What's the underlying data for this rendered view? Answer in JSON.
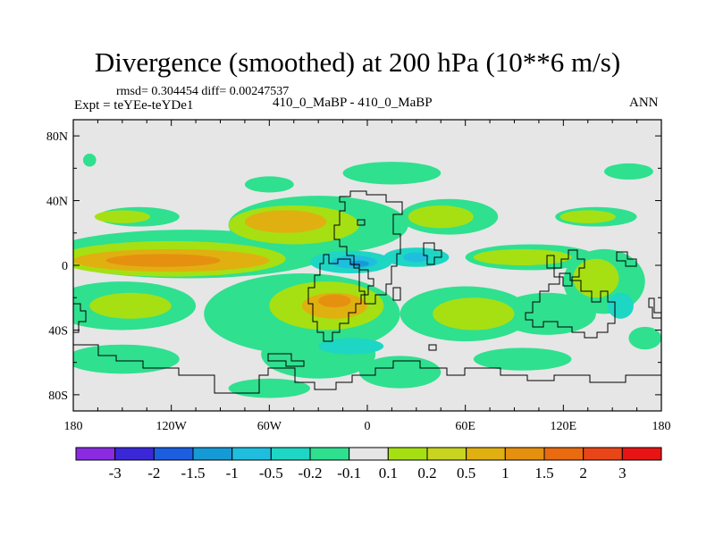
{
  "chart_data": {
    "type": "heatmap",
    "title": "Divergence (smoothed) at 200 hPa (10**6 m/s)",
    "stats_text": "rmsd= 0.304454 diff= 0.00247537",
    "experiment_text": "Expt = teYEe-teYDe1",
    "case_text": "410_0_MaBP - 410_0_MaBP",
    "season": "ANN",
    "xlim": [
      -180,
      180
    ],
    "ylim": [
      -90,
      90
    ],
    "x_ticks": [
      {
        "value": -180,
        "label": "180"
      },
      {
        "value": -120,
        "label": "120W"
      },
      {
        "value": -60,
        "label": "60W"
      },
      {
        "value": 0,
        "label": "0"
      },
      {
        "value": 60,
        "label": "60E"
      },
      {
        "value": 120,
        "label": "120E"
      },
      {
        "value": 180,
        "label": "180"
      }
    ],
    "y_ticks": [
      {
        "value": 80,
        "label": "80N"
      },
      {
        "value": 40,
        "label": "40N"
      },
      {
        "value": 0,
        "label": "0"
      },
      {
        "value": -40,
        "label": "40S"
      },
      {
        "value": -80,
        "label": "80S"
      }
    ],
    "colorbar": {
      "colors": [
        "#8a2be2",
        "#3a28d8",
        "#1c5ee0",
        "#169ad6",
        "#20bede",
        "#1ed6c4",
        "#2fe08f",
        "#e6e6e6",
        "#a6e012",
        "#c8d420",
        "#e0b010",
        "#e69010",
        "#ea6a10",
        "#e84618",
        "#e81414"
      ],
      "labels": [
        "-3",
        "-2",
        "-1.5",
        "-1",
        "-0.5",
        "-0.2",
        "-0.1",
        "0.1",
        "0.2",
        "0.5",
        "1",
        "1.5",
        "2",
        "3"
      ]
    },
    "regions": [
      {
        "lon": -170,
        "lat": 65,
        "w": 8,
        "h": 8,
        "level": "-0.1"
      },
      {
        "lon": 15,
        "lat": 57,
        "w": 60,
        "h": 14,
        "level": "-0.1"
      },
      {
        "lon": 160,
        "lat": 58,
        "w": 30,
        "h": 10,
        "level": "-0.1"
      },
      {
        "lon": -60,
        "lat": 50,
        "w": 30,
        "h": 10,
        "level": "-0.1"
      },
      {
        "lon": -140,
        "lat": 30,
        "w": 50,
        "h": 12,
        "level": "-0.1"
      },
      {
        "lon": 140,
        "lat": 30,
        "w": 50,
        "h": 12,
        "level": "-0.1"
      },
      {
        "lon": -110,
        "lat": 7,
        "w": 170,
        "h": 30,
        "level": "-0.1"
      },
      {
        "lon": -30,
        "lat": 25,
        "w": 110,
        "h": 36,
        "level": "-0.1"
      },
      {
        "lon": 50,
        "lat": 30,
        "w": 60,
        "h": 22,
        "level": "-0.1"
      },
      {
        "lon": 100,
        "lat": 5,
        "w": 80,
        "h": 16,
        "level": "-0.1"
      },
      {
        "lon": 145,
        "lat": -10,
        "w": 50,
        "h": 40,
        "level": "-0.1"
      },
      {
        "lon": -150,
        "lat": -25,
        "w": 90,
        "h": 30,
        "level": "-0.1"
      },
      {
        "lon": -40,
        "lat": -30,
        "w": 120,
        "h": 50,
        "level": "-0.1"
      },
      {
        "lon": 60,
        "lat": -30,
        "w": 80,
        "h": 34,
        "level": "-0.1"
      },
      {
        "lon": 110,
        "lat": -30,
        "w": 60,
        "h": 26,
        "level": "-0.1"
      },
      {
        "lon": -150,
        "lat": -58,
        "w": 70,
        "h": 18,
        "level": "-0.1"
      },
      {
        "lon": -30,
        "lat": -55,
        "w": 70,
        "h": 30,
        "level": "-0.1"
      },
      {
        "lon": 20,
        "lat": -66,
        "w": 50,
        "h": 20,
        "level": "-0.1"
      },
      {
        "lon": 95,
        "lat": -58,
        "w": 60,
        "h": 14,
        "level": "-0.1"
      },
      {
        "lon": -60,
        "lat": -76,
        "w": 50,
        "h": 12,
        "level": "-0.1"
      },
      {
        "lon": 170,
        "lat": -45,
        "w": 20,
        "h": 14,
        "level": "-0.1"
      },
      {
        "lon": -150,
        "lat": 30,
        "w": 34,
        "h": 8,
        "level": "0.1"
      },
      {
        "lon": 135,
        "lat": 30,
        "w": 34,
        "h": 8,
        "level": "0.1"
      },
      {
        "lon": -120,
        "lat": 4,
        "w": 140,
        "h": 22,
        "level": "0.1"
      },
      {
        "lon": -45,
        "lat": 25,
        "w": 80,
        "h": 24,
        "level": "0.1"
      },
      {
        "lon": 45,
        "lat": 30,
        "w": 40,
        "h": 14,
        "level": "0.1"
      },
      {
        "lon": 95,
        "lat": 5,
        "w": 60,
        "h": 10,
        "level": "0.1"
      },
      {
        "lon": 140,
        "lat": -8,
        "w": 28,
        "h": 24,
        "level": "0.1"
      },
      {
        "lon": -25,
        "lat": -25,
        "w": 70,
        "h": 30,
        "level": "0.1"
      },
      {
        "lon": 65,
        "lat": -30,
        "w": 50,
        "h": 20,
        "level": "0.1"
      },
      {
        "lon": -145,
        "lat": -25,
        "w": 50,
        "h": 16,
        "level": "0.1"
      },
      {
        "lon": -120,
        "lat": 3,
        "w": 120,
        "h": 14,
        "level": "0.5"
      },
      {
        "lon": -50,
        "lat": 27,
        "w": 50,
        "h": 14,
        "level": "0.5"
      },
      {
        "lon": -20,
        "lat": -25,
        "w": 40,
        "h": 16,
        "level": "0.5"
      },
      {
        "lon": -125,
        "lat": 3,
        "w": 70,
        "h": 8,
        "level": "1"
      },
      {
        "lon": -20,
        "lat": -22,
        "w": 20,
        "h": 8,
        "level": "1"
      },
      {
        "lon": -10,
        "lat": 2,
        "w": 50,
        "h": 14,
        "level": "-0.2"
      },
      {
        "lon": 30,
        "lat": 5,
        "w": 40,
        "h": 12,
        "level": "-0.2"
      },
      {
        "lon": -10,
        "lat": -50,
        "w": 40,
        "h": 10,
        "level": "-0.2"
      },
      {
        "lon": 155,
        "lat": -25,
        "w": 16,
        "h": 16,
        "level": "-0.2"
      },
      {
        "lon": -8,
        "lat": 2,
        "w": 28,
        "h": 8,
        "level": "-0.5"
      },
      {
        "lon": 30,
        "lat": 5,
        "w": 16,
        "h": 6,
        "level": "-0.5"
      },
      {
        "lon": -5,
        "lat": 1,
        "w": 12,
        "h": 4,
        "level": "-1"
      }
    ]
  }
}
